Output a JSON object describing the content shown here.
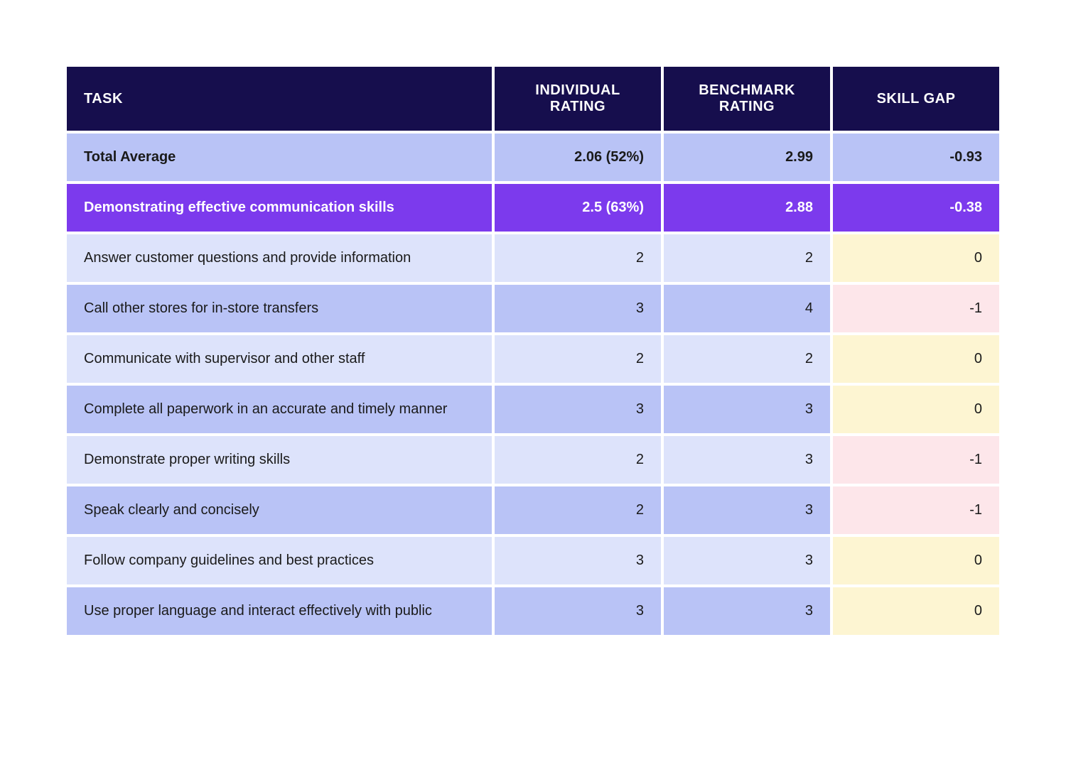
{
  "colors": {
    "header_bg": "#160e4d",
    "header_text": "#ffffff",
    "section_bg": "#7c3aed",
    "section_text": "#ffffff",
    "task_bg_dark": "#b9c3f6",
    "task_bg_light": "#dde3fb",
    "gap_zero_bg": "#fdf5d2",
    "gap_neg_bg": "#fde6ea",
    "row_text": "#1a1a1a"
  },
  "layout": {
    "col_widths": [
      "46%",
      "18%",
      "18%",
      "18%"
    ],
    "header_fontsize": 20,
    "cell_fontsize": 20,
    "row_padding_v": 22,
    "row_padding_h": 24
  },
  "headers": {
    "task": "TASK",
    "individual": "INDIVIDUAL RATING",
    "benchmark": "BENCHMARK RATING",
    "skill_gap": "SKILL GAP"
  },
  "rows": [
    {
      "type": "total",
      "task": "Total Average",
      "individual": "2.06 (52%)",
      "benchmark": "2.99",
      "skill_gap": "-0.93"
    },
    {
      "type": "section",
      "task": "Demonstrating effective communication skills",
      "individual": "2.5 (63%)",
      "benchmark": "2.88",
      "skill_gap": "-0.38"
    },
    {
      "type": "data",
      "task": "Answer customer questions and provide information",
      "individual": "2",
      "benchmark": "2",
      "skill_gap": "0"
    },
    {
      "type": "data",
      "task": "Call other stores for in-store transfers",
      "individual": "3",
      "benchmark": "4",
      "skill_gap": "-1"
    },
    {
      "type": "data",
      "task": "Communicate with supervisor and other staff",
      "individual": "2",
      "benchmark": "2",
      "skill_gap": "0"
    },
    {
      "type": "data",
      "task": "Complete all paperwork in an accurate and timely manner",
      "individual": "3",
      "benchmark": "3",
      "skill_gap": "0"
    },
    {
      "type": "data",
      "task": "Demonstrate proper writing skills",
      "individual": "2",
      "benchmark": "3",
      "skill_gap": "-1"
    },
    {
      "type": "data",
      "task": "Speak clearly and concisely",
      "individual": "2",
      "benchmark": "3",
      "skill_gap": "-1"
    },
    {
      "type": "data",
      "task": "Follow company guidelines and best practices",
      "individual": "3",
      "benchmark": "3",
      "skill_gap": "0"
    },
    {
      "type": "data",
      "task": "Use proper language and interact effectively with public",
      "individual": "3",
      "benchmark": "3",
      "skill_gap": "0"
    }
  ]
}
